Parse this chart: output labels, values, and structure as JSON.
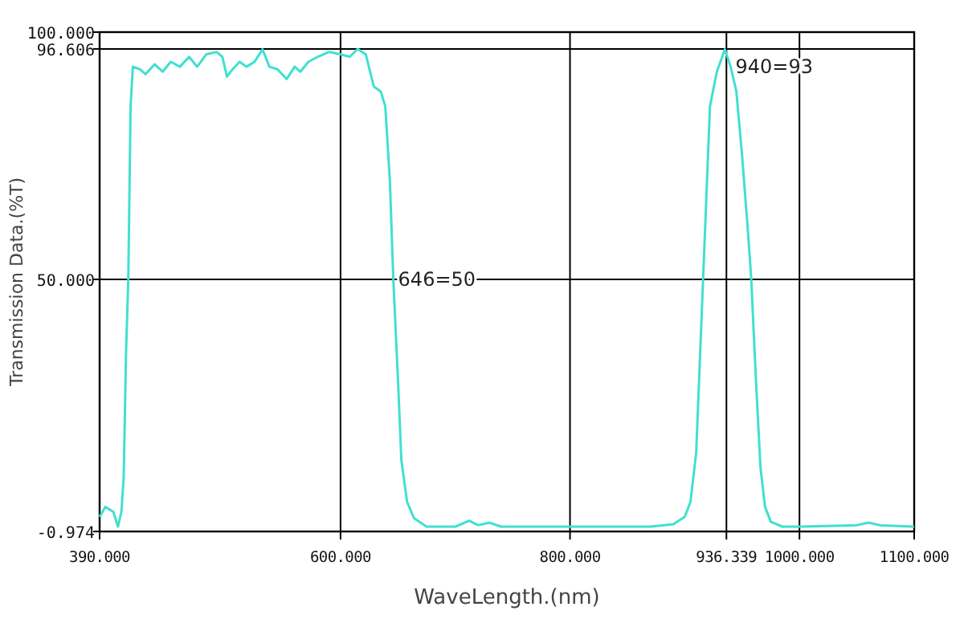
{
  "chart_data": {
    "type": "line",
    "xlabel": "WaveLength.(nm)",
    "ylabel": "Transmission Data.(%T)",
    "xlim": [
      390,
      1100
    ],
    "ylim": [
      -0.974,
      100
    ],
    "xticks": [
      {
        "value": 390,
        "label": "390.000"
      },
      {
        "value": 600,
        "label": "600.000"
      },
      {
        "value": 800,
        "label": "800.000"
      },
      {
        "value": 936.339,
        "label": "936.339"
      },
      {
        "value": 1000,
        "label": "1000.000"
      },
      {
        "value": 1100,
        "label": "1100.000"
      }
    ],
    "yticks": [
      {
        "value": -0.974,
        "label": "-0.974"
      },
      {
        "value": 50,
        "label": "50.000"
      },
      {
        "value": 96.606,
        "label": "96.606"
      },
      {
        "value": 100,
        "label": "100.000"
      }
    ],
    "grid": true,
    "marker": "none",
    "line_style": "solid",
    "annotations": [
      {
        "text": "646=50",
        "x": 646,
        "y": 50
      },
      {
        "text": "940=93",
        "x": 940,
        "y": 93
      }
    ],
    "series": [
      {
        "color": "#40e0d0",
        "x": [
          390,
          395,
          402,
          406,
          409,
          411,
          413,
          415,
          417,
          419,
          425,
          430,
          438,
          445,
          452,
          460,
          468,
          475,
          483,
          492,
          497,
          501,
          506,
          512,
          518,
          525,
          532,
          538,
          545,
          553,
          560,
          565,
          572,
          580,
          590,
          600,
          608,
          615,
          622,
          629,
          635,
          639,
          643,
          646,
          650,
          653,
          658,
          664,
          675,
          700,
          712,
          720,
          730,
          740,
          800,
          870,
          890,
          900,
          905,
          910,
          916,
          922,
          928,
          935,
          940,
          945,
          950,
          955,
          958,
          962,
          966,
          970,
          975,
          985,
          1000,
          1050,
          1060,
          1070,
          1100
        ],
        "values": [
          2,
          4,
          3,
          0,
          3,
          10,
          35,
          50,
          85,
          93,
          92.5,
          91.5,
          93.5,
          92,
          94,
          93,
          95,
          93,
          95.5,
          96,
          95,
          91,
          92.5,
          94,
          93,
          94,
          96.5,
          93,
          92.5,
          90.5,
          93,
          92,
          94,
          95,
          96,
          95.5,
          95,
          96.6,
          95.5,
          89,
          88,
          85,
          70,
          50,
          30,
          13.5,
          5,
          1.7,
          0,
          0,
          1.2,
          0.3,
          0.8,
          0,
          0,
          0,
          0.5,
          2,
          5,
          15,
          50,
          85,
          92,
          96.5,
          93,
          88,
          75,
          60,
          50,
          30,
          12,
          4,
          1,
          0,
          0,
          0.3,
          0.8,
          0.3,
          0
        ]
      }
    ]
  }
}
